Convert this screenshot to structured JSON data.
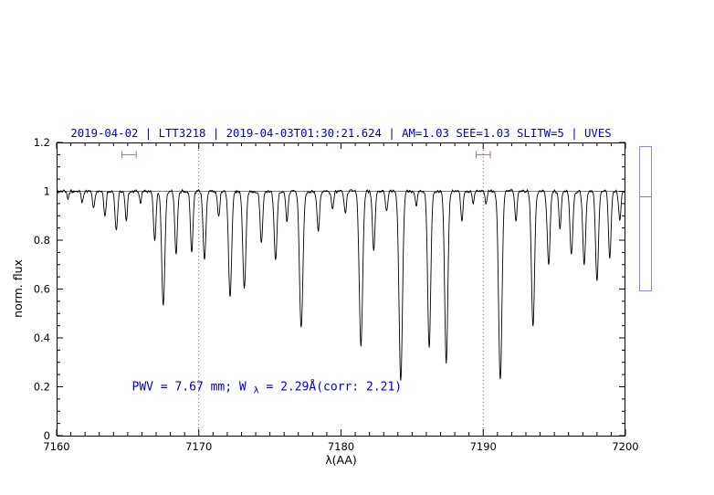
{
  "chart_data": {
    "type": "line",
    "title": "2019-04-02 | LTT3218 | 2019-04-03T01:30:21.624 | AM=1.03  SEE=1.03  SLITW=5 | UVES",
    "xlabel": "λ(AA)",
    "ylabel": "norm. flux",
    "xlim": [
      7160,
      7200
    ],
    "ylim": [
      0,
      1.2
    ],
    "xticks": [
      7160,
      7170,
      7180,
      7190,
      7200
    ],
    "yticks": [
      "0",
      "0.2",
      "0.4",
      "0.6",
      "0.8",
      "1",
      "1.2"
    ],
    "x_minor_step": 1,
    "y_minor_step": 0.05,
    "grid": "off",
    "legend": "none",
    "dotted_vlines": [
      7170,
      7190
    ],
    "continuum": {
      "y": 1.0
    },
    "annotation_parts": [
      "PWV = 7.67 mm; W",
      "λ",
      " = 2.29Å(corr: 2.21)"
    ],
    "annotation_position": {
      "x": 7165.3,
      "y": 0.185
    },
    "range_markers": [
      {
        "x1": 7164.6,
        "x2": 7165.6,
        "y": 1.15
      },
      {
        "x1": 7189.5,
        "x2": 7190.5,
        "y": 1.15
      }
    ],
    "absorption_lines": [
      [
        7160.8,
        0.03,
        0.07
      ],
      [
        7161.8,
        0.05,
        0.07
      ],
      [
        7162.6,
        0.07,
        0.08
      ],
      [
        7163.4,
        0.1,
        0.08
      ],
      [
        7164.2,
        0.16,
        0.09
      ],
      [
        7164.9,
        0.12,
        0.08
      ],
      [
        7165.9,
        0.05,
        0.07
      ],
      [
        7166.9,
        0.2,
        0.09
      ],
      [
        7167.5,
        0.47,
        0.11
      ],
      [
        7168.4,
        0.26,
        0.09
      ],
      [
        7169.5,
        0.25,
        0.09
      ],
      [
        7170.4,
        0.28,
        0.1
      ],
      [
        7171.4,
        0.1,
        0.08
      ],
      [
        7172.2,
        0.43,
        0.11
      ],
      [
        7173.2,
        0.4,
        0.11
      ],
      [
        7174.4,
        0.21,
        0.09
      ],
      [
        7175.4,
        0.28,
        0.1
      ],
      [
        7176.2,
        0.12,
        0.08
      ],
      [
        7177.2,
        0.56,
        0.12
      ],
      [
        7178.4,
        0.16,
        0.09
      ],
      [
        7179.4,
        0.07,
        0.08
      ],
      [
        7180.3,
        0.09,
        0.08
      ],
      [
        7181.4,
        0.63,
        0.12
      ],
      [
        7182.3,
        0.25,
        0.09
      ],
      [
        7183.2,
        0.08,
        0.08
      ],
      [
        7184.2,
        0.78,
        0.12
      ],
      [
        7185.3,
        0.06,
        0.07
      ],
      [
        7186.2,
        0.64,
        0.11
      ],
      [
        7187.4,
        0.7,
        0.11
      ],
      [
        7188.5,
        0.12,
        0.08
      ],
      [
        7189.3,
        0.05,
        0.07
      ],
      [
        7190.2,
        0.05,
        0.07
      ],
      [
        7191.2,
        0.77,
        0.12
      ],
      [
        7192.3,
        0.12,
        0.08
      ],
      [
        7193.5,
        0.55,
        0.11
      ],
      [
        7194.6,
        0.3,
        0.1
      ],
      [
        7195.4,
        0.15,
        0.08
      ],
      [
        7196.2,
        0.26,
        0.1
      ],
      [
        7197.1,
        0.3,
        0.1
      ],
      [
        7198.0,
        0.37,
        0.1
      ],
      [
        7198.9,
        0.28,
        0.09
      ],
      [
        7199.6,
        0.12,
        0.08
      ]
    ],
    "noise_amplitude": 0.009,
    "noise_seed": 1234,
    "colors": {
      "spectrum": "#000000",
      "continuum": "#c86060",
      "marker": "#cd6070",
      "accent_blue": "#0000cd",
      "widget_border": "#8c8cdc"
    }
  }
}
